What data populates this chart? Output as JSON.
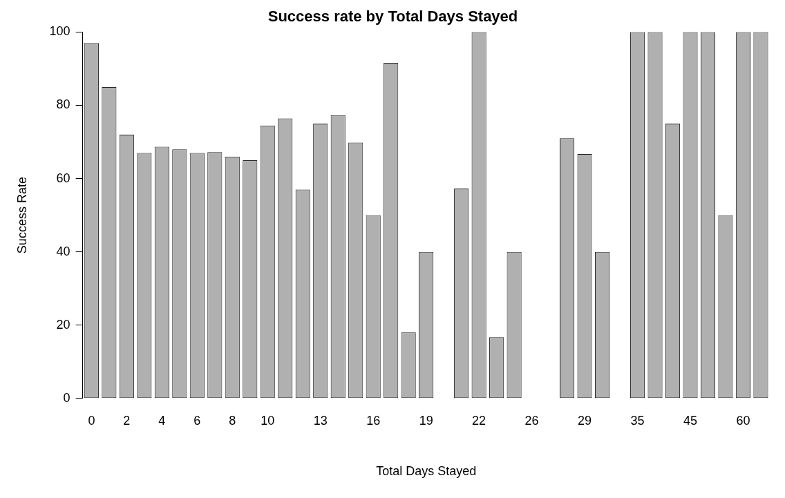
{
  "chart_data": {
    "type": "bar",
    "title": "Success rate by Total Days Stayed",
    "xlabel": "Total Days Stayed",
    "ylabel": "Success Rate",
    "categories": [
      "0",
      null,
      "2",
      null,
      "4",
      null,
      "6",
      null,
      "8",
      null,
      "10",
      null,
      null,
      "13",
      null,
      null,
      "16",
      null,
      null,
      "19",
      null,
      null,
      "22",
      null,
      null,
      "26",
      null,
      null,
      "29",
      null,
      null,
      "35",
      null,
      null,
      "45",
      null,
      null,
      "60",
      null
    ],
    "values": [
      97,
      85,
      72,
      67,
      68.7,
      68,
      67,
      67.2,
      66,
      65,
      74.5,
      76.4,
      57,
      75,
      77.3,
      69.8,
      50,
      91.6,
      18,
      40,
      0,
      57.3,
      100,
      16.7,
      40,
      0,
      0,
      71,
      66.7,
      40,
      0,
      100,
      100,
      75,
      100,
      100,
      50,
      100,
      100
    ],
    "color": "#b0b0b0",
    "ylim": [
      0,
      100
    ],
    "yticks": [
      0,
      20,
      40,
      60,
      80,
      100
    ],
    "grid": false,
    "legend": false
  }
}
